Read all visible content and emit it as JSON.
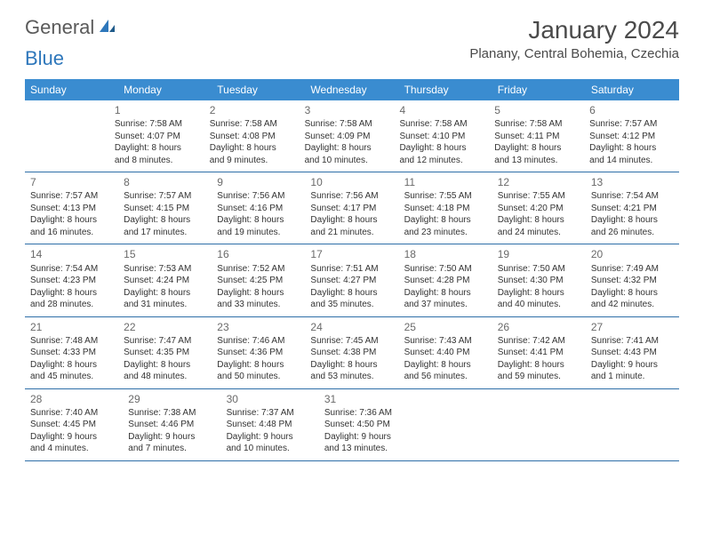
{
  "logo": {
    "part1": "General",
    "part2": "Blue"
  },
  "header": {
    "month_title": "January 2024",
    "location": "Planany, Central Bohemia, Czechia"
  },
  "colors": {
    "header_bg": "#3a8cd0",
    "header_text": "#ffffff",
    "divider": "#2e6fa8",
    "logo_gray": "#5a5a5a",
    "logo_blue": "#2e77bb"
  },
  "day_names": [
    "Sunday",
    "Monday",
    "Tuesday",
    "Wednesday",
    "Thursday",
    "Friday",
    "Saturday"
  ],
  "weeks": [
    [
      null,
      {
        "n": "1",
        "sr": "Sunrise: 7:58 AM",
        "ss": "Sunset: 4:07 PM",
        "d1": "Daylight: 8 hours",
        "d2": "and 8 minutes."
      },
      {
        "n": "2",
        "sr": "Sunrise: 7:58 AM",
        "ss": "Sunset: 4:08 PM",
        "d1": "Daylight: 8 hours",
        "d2": "and 9 minutes."
      },
      {
        "n": "3",
        "sr": "Sunrise: 7:58 AM",
        "ss": "Sunset: 4:09 PM",
        "d1": "Daylight: 8 hours",
        "d2": "and 10 minutes."
      },
      {
        "n": "4",
        "sr": "Sunrise: 7:58 AM",
        "ss": "Sunset: 4:10 PM",
        "d1": "Daylight: 8 hours",
        "d2": "and 12 minutes."
      },
      {
        "n": "5",
        "sr": "Sunrise: 7:58 AM",
        "ss": "Sunset: 4:11 PM",
        "d1": "Daylight: 8 hours",
        "d2": "and 13 minutes."
      },
      {
        "n": "6",
        "sr": "Sunrise: 7:57 AM",
        "ss": "Sunset: 4:12 PM",
        "d1": "Daylight: 8 hours",
        "d2": "and 14 minutes."
      }
    ],
    [
      {
        "n": "7",
        "sr": "Sunrise: 7:57 AM",
        "ss": "Sunset: 4:13 PM",
        "d1": "Daylight: 8 hours",
        "d2": "and 16 minutes."
      },
      {
        "n": "8",
        "sr": "Sunrise: 7:57 AM",
        "ss": "Sunset: 4:15 PM",
        "d1": "Daylight: 8 hours",
        "d2": "and 17 minutes."
      },
      {
        "n": "9",
        "sr": "Sunrise: 7:56 AM",
        "ss": "Sunset: 4:16 PM",
        "d1": "Daylight: 8 hours",
        "d2": "and 19 minutes."
      },
      {
        "n": "10",
        "sr": "Sunrise: 7:56 AM",
        "ss": "Sunset: 4:17 PM",
        "d1": "Daylight: 8 hours",
        "d2": "and 21 minutes."
      },
      {
        "n": "11",
        "sr": "Sunrise: 7:55 AM",
        "ss": "Sunset: 4:18 PM",
        "d1": "Daylight: 8 hours",
        "d2": "and 23 minutes."
      },
      {
        "n": "12",
        "sr": "Sunrise: 7:55 AM",
        "ss": "Sunset: 4:20 PM",
        "d1": "Daylight: 8 hours",
        "d2": "and 24 minutes."
      },
      {
        "n": "13",
        "sr": "Sunrise: 7:54 AM",
        "ss": "Sunset: 4:21 PM",
        "d1": "Daylight: 8 hours",
        "d2": "and 26 minutes."
      }
    ],
    [
      {
        "n": "14",
        "sr": "Sunrise: 7:54 AM",
        "ss": "Sunset: 4:23 PM",
        "d1": "Daylight: 8 hours",
        "d2": "and 28 minutes."
      },
      {
        "n": "15",
        "sr": "Sunrise: 7:53 AM",
        "ss": "Sunset: 4:24 PM",
        "d1": "Daylight: 8 hours",
        "d2": "and 31 minutes."
      },
      {
        "n": "16",
        "sr": "Sunrise: 7:52 AM",
        "ss": "Sunset: 4:25 PM",
        "d1": "Daylight: 8 hours",
        "d2": "and 33 minutes."
      },
      {
        "n": "17",
        "sr": "Sunrise: 7:51 AM",
        "ss": "Sunset: 4:27 PM",
        "d1": "Daylight: 8 hours",
        "d2": "and 35 minutes."
      },
      {
        "n": "18",
        "sr": "Sunrise: 7:50 AM",
        "ss": "Sunset: 4:28 PM",
        "d1": "Daylight: 8 hours",
        "d2": "and 37 minutes."
      },
      {
        "n": "19",
        "sr": "Sunrise: 7:50 AM",
        "ss": "Sunset: 4:30 PM",
        "d1": "Daylight: 8 hours",
        "d2": "and 40 minutes."
      },
      {
        "n": "20",
        "sr": "Sunrise: 7:49 AM",
        "ss": "Sunset: 4:32 PM",
        "d1": "Daylight: 8 hours",
        "d2": "and 42 minutes."
      }
    ],
    [
      {
        "n": "21",
        "sr": "Sunrise: 7:48 AM",
        "ss": "Sunset: 4:33 PM",
        "d1": "Daylight: 8 hours",
        "d2": "and 45 minutes."
      },
      {
        "n": "22",
        "sr": "Sunrise: 7:47 AM",
        "ss": "Sunset: 4:35 PM",
        "d1": "Daylight: 8 hours",
        "d2": "and 48 minutes."
      },
      {
        "n": "23",
        "sr": "Sunrise: 7:46 AM",
        "ss": "Sunset: 4:36 PM",
        "d1": "Daylight: 8 hours",
        "d2": "and 50 minutes."
      },
      {
        "n": "24",
        "sr": "Sunrise: 7:45 AM",
        "ss": "Sunset: 4:38 PM",
        "d1": "Daylight: 8 hours",
        "d2": "and 53 minutes."
      },
      {
        "n": "25",
        "sr": "Sunrise: 7:43 AM",
        "ss": "Sunset: 4:40 PM",
        "d1": "Daylight: 8 hours",
        "d2": "and 56 minutes."
      },
      {
        "n": "26",
        "sr": "Sunrise: 7:42 AM",
        "ss": "Sunset: 4:41 PM",
        "d1": "Daylight: 8 hours",
        "d2": "and 59 minutes."
      },
      {
        "n": "27",
        "sr": "Sunrise: 7:41 AM",
        "ss": "Sunset: 4:43 PM",
        "d1": "Daylight: 9 hours",
        "d2": "and 1 minute."
      }
    ],
    [
      {
        "n": "28",
        "sr": "Sunrise: 7:40 AM",
        "ss": "Sunset: 4:45 PM",
        "d1": "Daylight: 9 hours",
        "d2": "and 4 minutes."
      },
      {
        "n": "29",
        "sr": "Sunrise: 7:38 AM",
        "ss": "Sunset: 4:46 PM",
        "d1": "Daylight: 9 hours",
        "d2": "and 7 minutes."
      },
      {
        "n": "30",
        "sr": "Sunrise: 7:37 AM",
        "ss": "Sunset: 4:48 PM",
        "d1": "Daylight: 9 hours",
        "d2": "and 10 minutes."
      },
      {
        "n": "31",
        "sr": "Sunrise: 7:36 AM",
        "ss": "Sunset: 4:50 PM",
        "d1": "Daylight: 9 hours",
        "d2": "and 13 minutes."
      },
      null,
      null,
      null
    ]
  ]
}
